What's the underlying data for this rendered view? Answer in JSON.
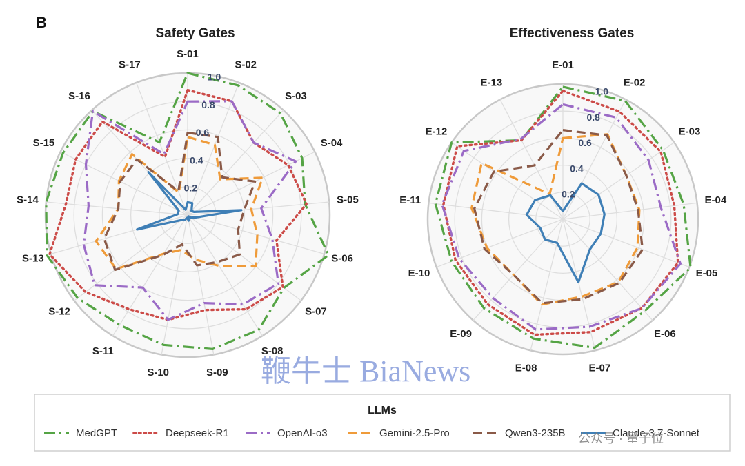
{
  "panel_letter": "B",
  "ticks": [
    "0.2",
    "0.4",
    "0.6",
    "0.8",
    "1.0"
  ],
  "tick_values": [
    0.2,
    0.4,
    0.6,
    0.8,
    1.0
  ],
  "legend": {
    "title": "LLMs",
    "entries": [
      {
        "name": "MedGPT",
        "color": "#55a445",
        "dash": "dashdot"
      },
      {
        "name": "Deepseek-R1",
        "color": "#cc4b48",
        "dash": "dotted"
      },
      {
        "name": "OpenAI-o3",
        "color": "#9b6bc6",
        "dash": "dashdot"
      },
      {
        "name": "Gemini-2.5-Pro",
        "color": "#ef9b3a",
        "dash": "dashed"
      },
      {
        "name": "Qwen3-235B",
        "color": "#8a5a48",
        "dash": "dashed"
      },
      {
        "name": "Claude-3.7-Sonnet",
        "color": "#3f7fb6",
        "dash": "solid"
      }
    ]
  },
  "watermarks": {
    "center": "鞭牛士 BiaNews",
    "corner": "公众号 · 量子位"
  },
  "chart_data": [
    {
      "type": "radar",
      "title": "Safety Gates",
      "rlim": [
        0,
        1.0
      ],
      "categories": [
        "S-01",
        "S-02",
        "S-03",
        "S-04",
        "S-05",
        "S-06",
        "S-07",
        "S-08",
        "S-09",
        "S-10",
        "S-11",
        "S-12",
        "S-13",
        "S-14",
        "S-15",
        "S-16",
        "S-17"
      ],
      "series": [
        {
          "name": "MedGPT",
          "values": [
            1.0,
            0.98,
            0.97,
            0.9,
            0.83,
            1.03,
            0.85,
            0.95,
            0.96,
            0.93,
            0.91,
            0.97,
            1.03,
            1.0,
            0.98,
            0.99,
            0.55
          ]
        },
        {
          "name": "Deepseek-R1",
          "values": [
            0.88,
            0.86,
            0.69,
            0.79,
            0.84,
            0.65,
            0.84,
            0.78,
            0.68,
            0.75,
            0.78,
            0.9,
            1.01,
            0.86,
            0.88,
            0.89,
            0.44
          ]
        },
        {
          "name": "OpenAI-o3",
          "values": [
            0.8,
            0.86,
            0.69,
            0.85,
            0.52,
            0.62,
            0.8,
            0.74,
            0.63,
            0.75,
            0.6,
            0.82,
            0.76,
            0.7,
            0.8,
            0.99,
            0.46
          ]
        },
        {
          "name": "Gemini-2.5-Pro",
          "values": [
            0.55,
            0.53,
            0.34,
            0.59,
            0.45,
            0.51,
            0.6,
            0.42,
            0.32,
            0.25,
            0.32,
            0.63,
            0.67,
            0.49,
            0.54,
            0.58,
            0.17
          ]
        },
        {
          "name": "Qwen3-235B",
          "values": [
            0.58,
            0.59,
            0.36,
            0.53,
            0.4,
            0.37,
            0.46,
            0.39,
            0.36,
            0.21,
            0.33,
            0.64,
            0.61,
            0.49,
            0.53,
            0.53,
            0.18
          ]
        },
        {
          "name": "Claude-3.7-Sonnet",
          "values": [
            0.09,
            0.09,
            0.04,
            0.05,
            0.38,
            0.06,
            0.03,
            0.01,
            0.04,
            0.02,
            0.04,
            0.06,
            0.37,
            0.07,
            0.07,
            0.41,
            0.04
          ]
        }
      ]
    },
    {
      "type": "radar",
      "title": "Effectiveness Gates",
      "rlim": [
        0,
        1.0
      ],
      "categories": [
        "E-01",
        "E-02",
        "E-03",
        "E-04",
        "E-05",
        "E-06",
        "E-07",
        "E-08",
        "E-09",
        "E-10",
        "E-11",
        "E-12",
        "E-13"
      ],
      "series": [
        {
          "name": "MedGPT",
          "values": [
            0.98,
            0.99,
            0.9,
            0.9,
            1.01,
            0.91,
            0.98,
            0.91,
            0.88,
            0.88,
            0.95,
            1.0,
            0.66
          ]
        },
        {
          "name": "Deepseek-R1",
          "values": [
            0.95,
            0.9,
            0.88,
            0.83,
            0.91,
            0.88,
            0.86,
            0.88,
            0.84,
            0.85,
            0.89,
            0.95,
            0.66
          ]
        },
        {
          "name": "OpenAI-o3",
          "values": [
            0.85,
            0.85,
            0.77,
            0.73,
            0.93,
            0.88,
            0.82,
            0.84,
            0.78,
            0.82,
            0.9,
            0.89,
            0.67
          ]
        },
        {
          "name": "Gemini-2.5-Pro",
          "values": [
            0.6,
            0.71,
            0.57,
            0.57,
            0.59,
            0.62,
            0.59,
            0.65,
            0.55,
            0.6,
            0.68,
            0.73,
            0.21
          ]
        },
        {
          "name": "Qwen3-235B",
          "values": [
            0.66,
            0.7,
            0.57,
            0.56,
            0.63,
            0.63,
            0.61,
            0.64,
            0.55,
            0.62,
            0.66,
            0.62,
            0.45
          ]
        },
        {
          "name": "Claude-3.7-Sonnet",
          "values": [
            0.06,
            0.3,
            0.32,
            0.31,
            0.3,
            0.3,
            0.48,
            0.18,
            0.2,
            0.18,
            0.27,
            0.25,
            0.2
          ]
        }
      ]
    }
  ]
}
